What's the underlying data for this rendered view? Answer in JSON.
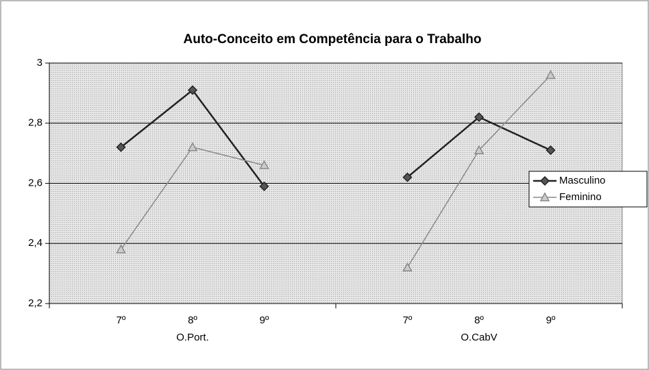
{
  "chart_data": {
    "type": "line",
    "title": "Auto-Conceito em Competência para o Trabalho",
    "categories": [
      null,
      "7º",
      "8º",
      "9º",
      null,
      "7º",
      "8º",
      "9º",
      null
    ],
    "group_labels": [
      "O.Port.",
      "O.CabV"
    ],
    "series": [
      {
        "name": "Masculino",
        "color": "#222222",
        "marker": "diamond",
        "values": [
          null,
          2.72,
          2.91,
          2.59,
          null,
          2.62,
          2.82,
          2.71,
          null
        ]
      },
      {
        "name": "Feminino",
        "color": "#8a8a8a",
        "marker": "triangle",
        "values": [
          null,
          2.38,
          2.72,
          2.66,
          null,
          2.32,
          2.71,
          2.96,
          null
        ]
      }
    ],
    "ylim": [
      2.2,
      3
    ],
    "yticks": [
      {
        "value": 2.2,
        "label": "2,2"
      },
      {
        "value": 2.4,
        "label": "2,4"
      },
      {
        "value": 2.6,
        "label": "2,6"
      },
      {
        "value": 2.8,
        "label": "2,8"
      },
      3
    ],
    "grid": true,
    "legend": "right"
  }
}
